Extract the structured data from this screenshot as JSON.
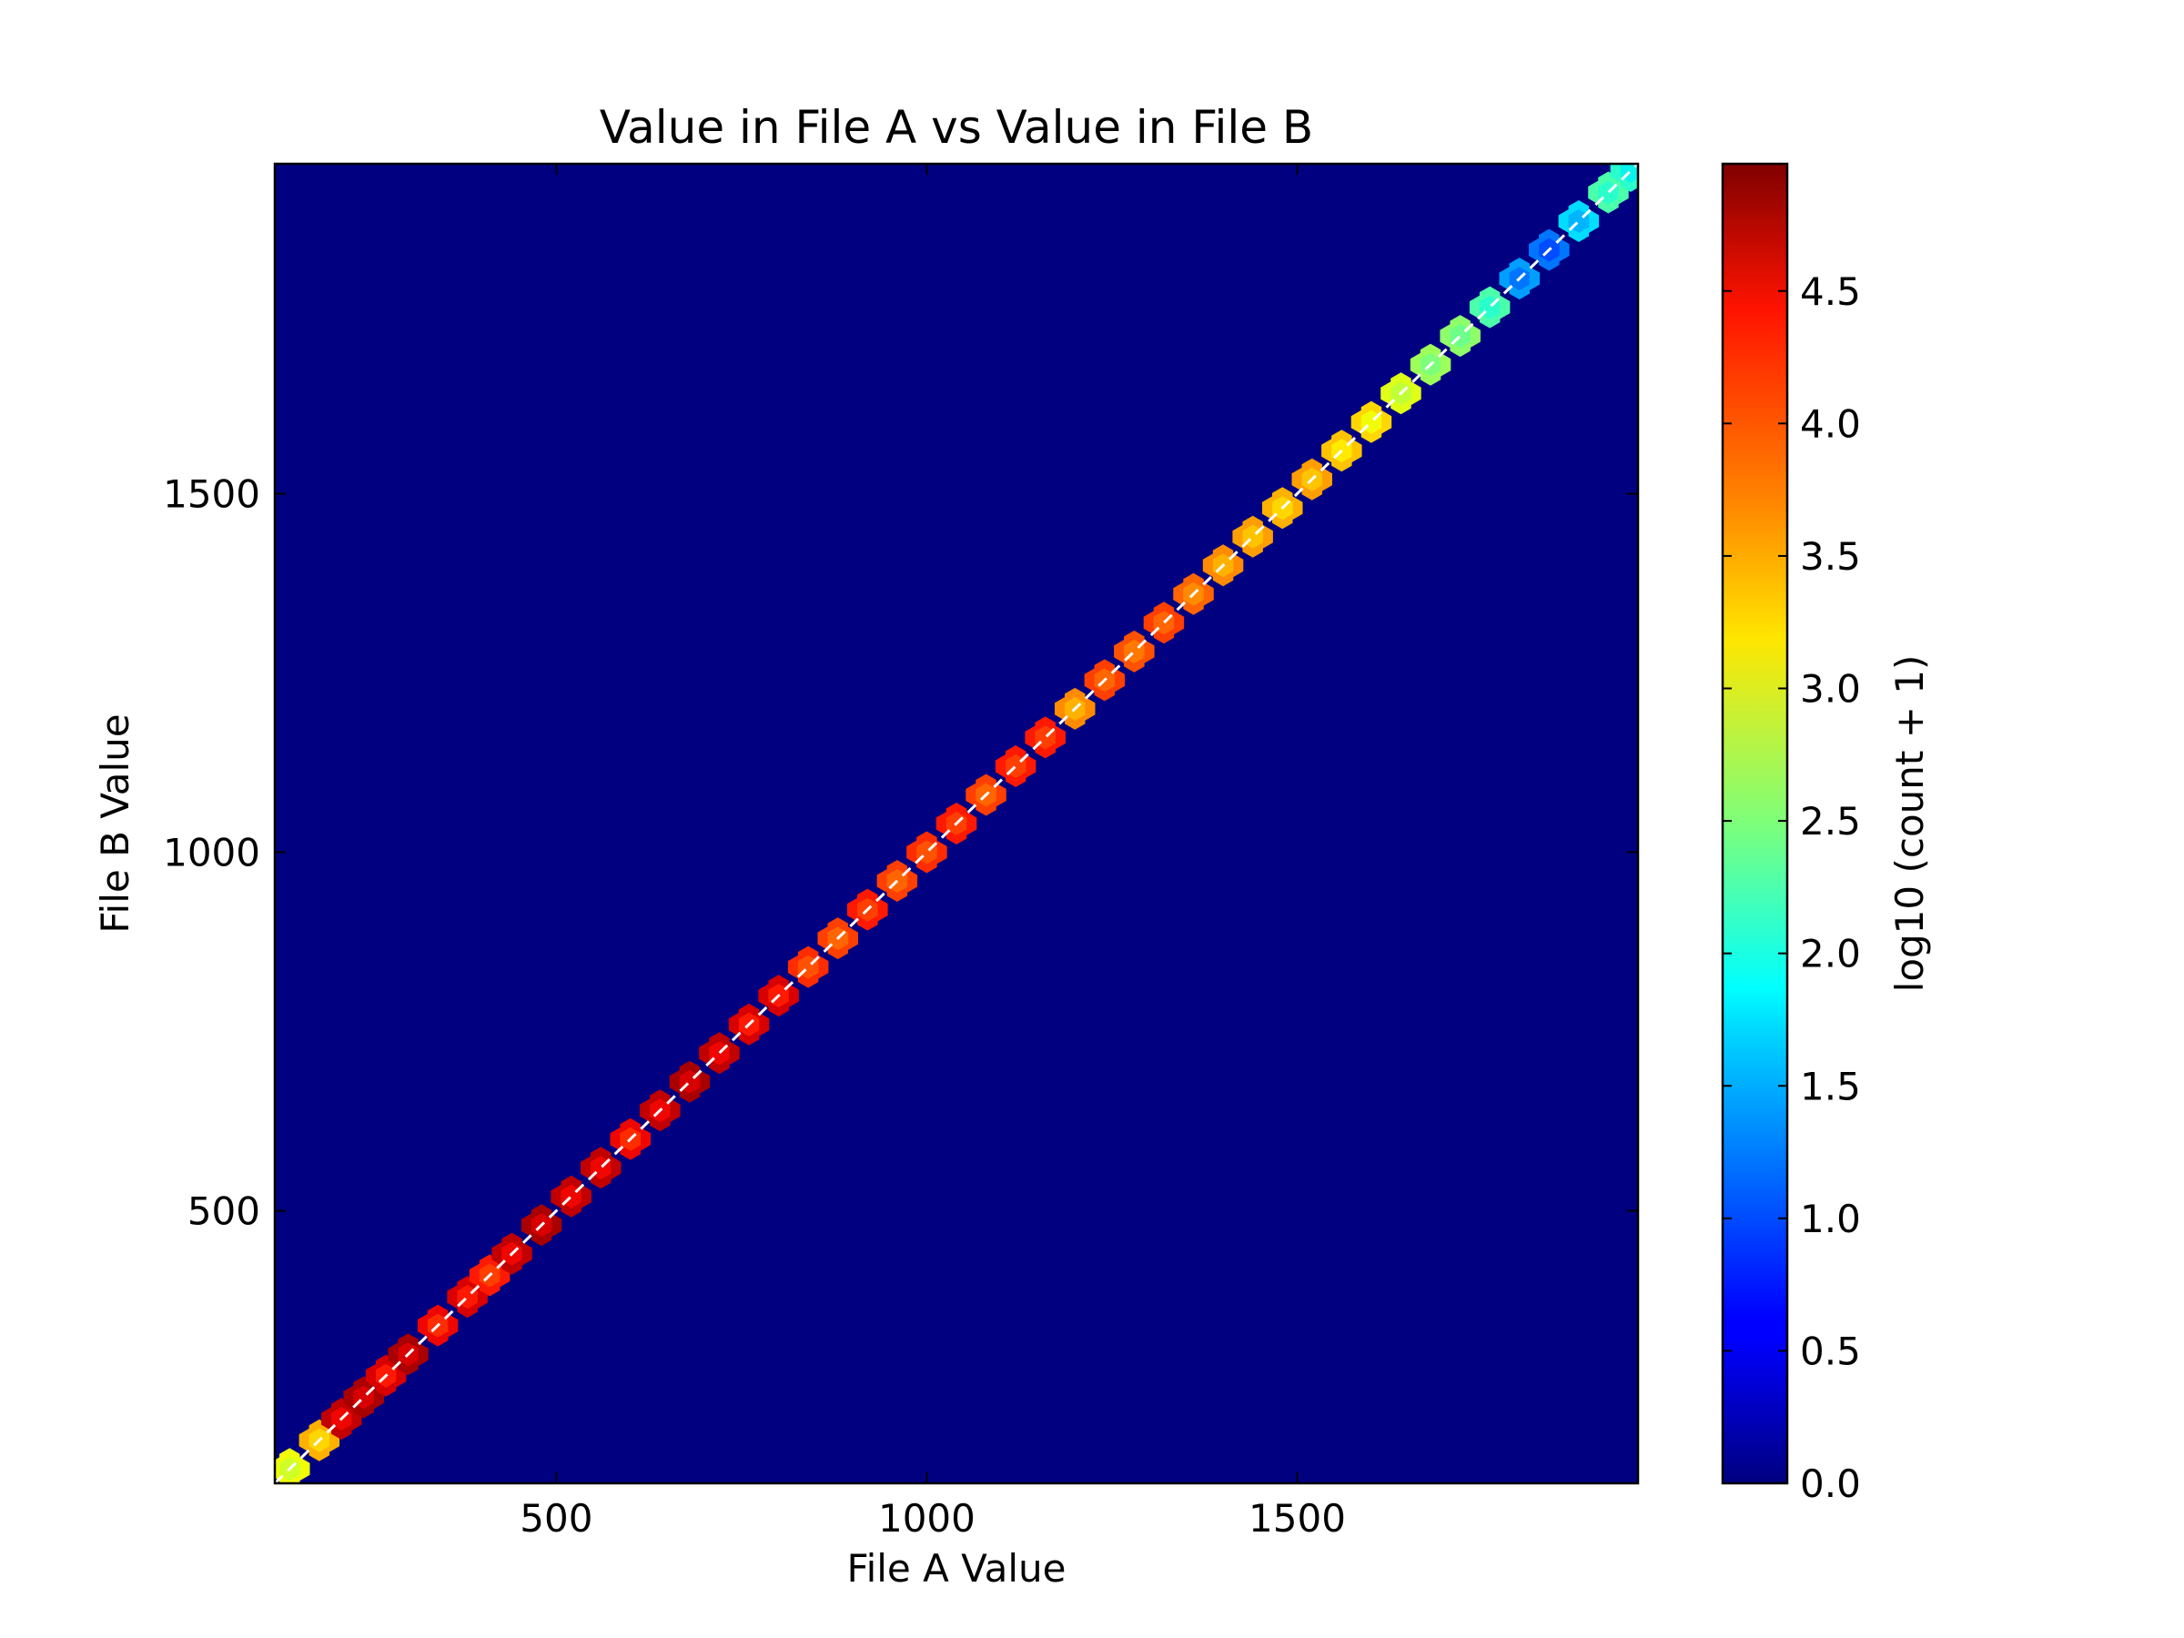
{
  "chart_data": {
    "type": "heatmap",
    "subtype": "hexbin",
    "title": "Value in File A vs Value in File B",
    "xlabel": "File A Value",
    "ylabel": "File B Value",
    "xlim": [
      120,
      1960
    ],
    "ylim": [
      120,
      1960
    ],
    "xticks": [
      500,
      1000,
      1500
    ],
    "xtick_labels": [
      "500",
      "1000",
      "1500"
    ],
    "yticks": [
      500,
      1000,
      1500
    ],
    "ytick_labels": [
      "500",
      "1000",
      "1500"
    ],
    "grid": false,
    "background_color": "#000080",
    "reference_line": {
      "style": "dashed",
      "color": "#ffffff",
      "x": [
        120,
        1960
      ],
      "y": [
        120,
        1960
      ]
    },
    "colorbar": {
      "label": "log10 (count + 1)",
      "colormap": "jet",
      "range": [
        0.0,
        4.98
      ],
      "ticks": [
        0.0,
        0.5,
        1.0,
        1.5,
        2.0,
        2.5,
        3.0,
        3.5,
        4.0,
        4.5
      ],
      "tick_labels": [
        "0.0",
        "0.5",
        "1.0",
        "1.5",
        "2.0",
        "2.5",
        "3.0",
        "3.5",
        "4.0",
        "4.5"
      ]
    },
    "x_centers": [
      140,
      180,
      210,
      240,
      270,
      300,
      340,
      380,
      410,
      440,
      480,
      520,
      560,
      600,
      640,
      680,
      720,
      760,
      800,
      840,
      880,
      920,
      960,
      1000,
      1040,
      1080,
      1120,
      1160,
      1200,
      1240,
      1280,
      1320,
      1360,
      1400,
      1440,
      1480,
      1520,
      1560,
      1600,
      1640,
      1680,
      1720,
      1760,
      1800,
      1840,
      1880,
      1920,
      1950
    ],
    "log_counts": [
      3.0,
      3.4,
      4.5,
      4.6,
      4.4,
      4.6,
      4.3,
      4.4,
      4.2,
      4.5,
      4.6,
      4.5,
      4.5,
      4.3,
      4.5,
      4.6,
      4.5,
      4.4,
      4.4,
      4.1,
      4.0,
      4.2,
      4.0,
      4.1,
      4.2,
      4.0,
      4.2,
      4.2,
      3.6,
      4.0,
      3.9,
      4.0,
      3.8,
      3.6,
      3.5,
      3.4,
      3.5,
      3.3,
      3.2,
      2.9,
      2.5,
      2.4,
      2.0,
      1.2,
      1.0,
      1.5,
      2.0,
      1.8
    ]
  }
}
